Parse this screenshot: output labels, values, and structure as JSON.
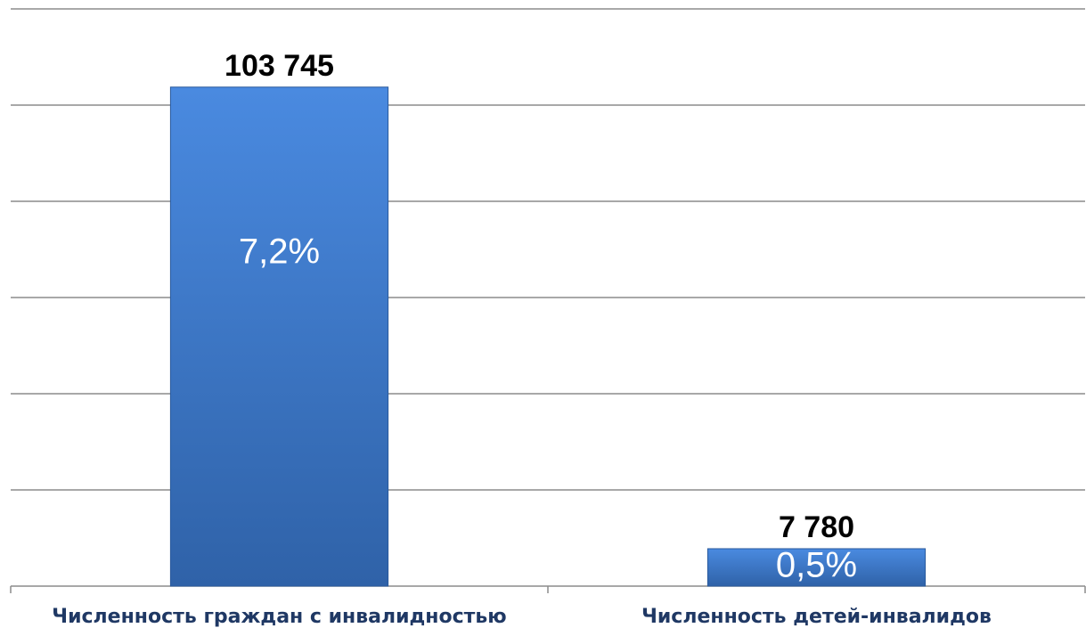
{
  "chart_data": {
    "type": "bar",
    "categories": [
      "Численность граждан с инвалидностью",
      "Численность детей-инвалидов"
    ],
    "values": [
      103745,
      7780
    ],
    "value_labels": [
      "103 745",
      "7 780"
    ],
    "shares": [
      7.2,
      0.5
    ],
    "share_labels": [
      "7,2%",
      "0,5%"
    ],
    "color": "#3a78cc",
    "ylim": [
      0,
      120000
    ],
    "yticks": [
      0,
      20000,
      40000,
      60000,
      80000,
      100000,
      120000
    ],
    "grid": true
  }
}
